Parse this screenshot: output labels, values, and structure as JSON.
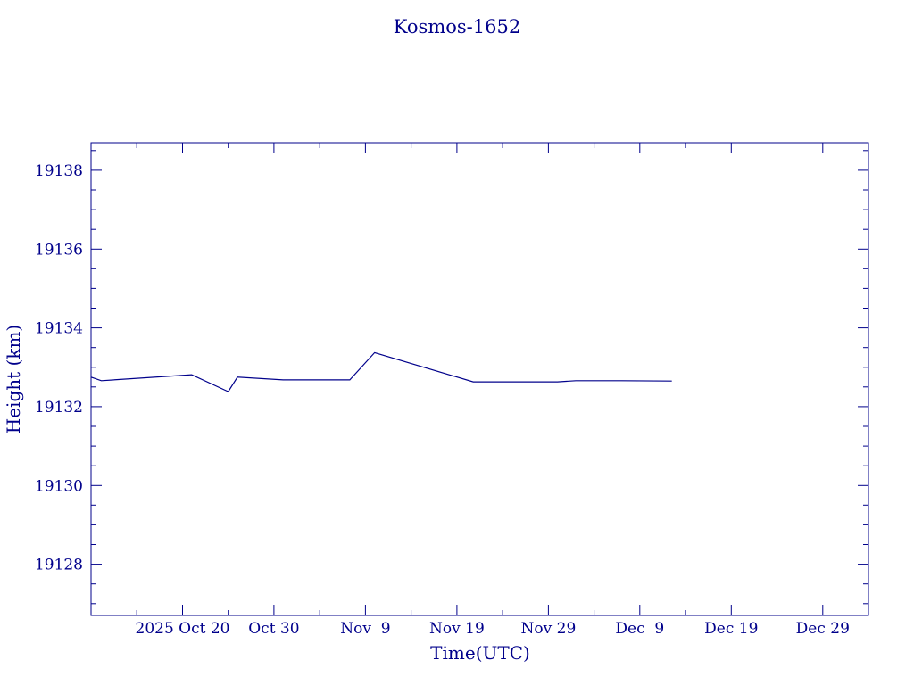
{
  "chart_data": {
    "type": "line",
    "title": "Kosmos-1652",
    "xlabel": "Time(UTC)",
    "ylabel": "Height (km)",
    "ylim": [
      19126.7,
      19138.7
    ],
    "yticks": [
      "19128",
      "19130",
      "19132",
      "19134",
      "19136",
      "19138"
    ],
    "xticks": [
      {
        "label": "2025 Oct 20",
        "date": "2025-10-20"
      },
      {
        "label": "Oct 30",
        "date": "2025-10-30"
      },
      {
        "label": "Nov  9",
        "date": "2025-11-09"
      },
      {
        "label": "Nov 19",
        "date": "2025-11-19"
      },
      {
        "label": "Nov 29",
        "date": "2025-11-29"
      },
      {
        "label": "Dec  9",
        "date": "2025-12-09"
      },
      {
        "label": "Dec 19",
        "date": "2025-12-19"
      },
      {
        "label": "Dec 29",
        "date": "2025-12-29"
      }
    ],
    "xlim": [
      "2025-10-10T00:00",
      "2026-01-03T00:00"
    ],
    "grid": false,
    "color": "#00008b",
    "series": [
      {
        "points": [
          [
            "2025-10-10T00:00",
            19132.75
          ],
          [
            "2025-10-11T03:00",
            19132.66
          ],
          [
            "2025-10-21T00:00",
            19132.81
          ],
          [
            "2025-10-25T00:00",
            19132.38
          ],
          [
            "2025-10-26T00:00",
            19132.75
          ],
          [
            "2025-10-31T00:00",
            19132.68
          ],
          [
            "2025-11-07T07:00",
            19132.68
          ],
          [
            "2025-11-10T00:00",
            19133.37
          ],
          [
            "2025-11-20T19:00",
            19132.63
          ],
          [
            "2025-11-30T00:00",
            19132.63
          ],
          [
            "2025-12-02T00:00",
            19132.66
          ],
          [
            "2025-12-07T00:00",
            19132.66
          ],
          [
            "2025-12-12T12:00",
            19132.65
          ]
        ]
      }
    ]
  }
}
